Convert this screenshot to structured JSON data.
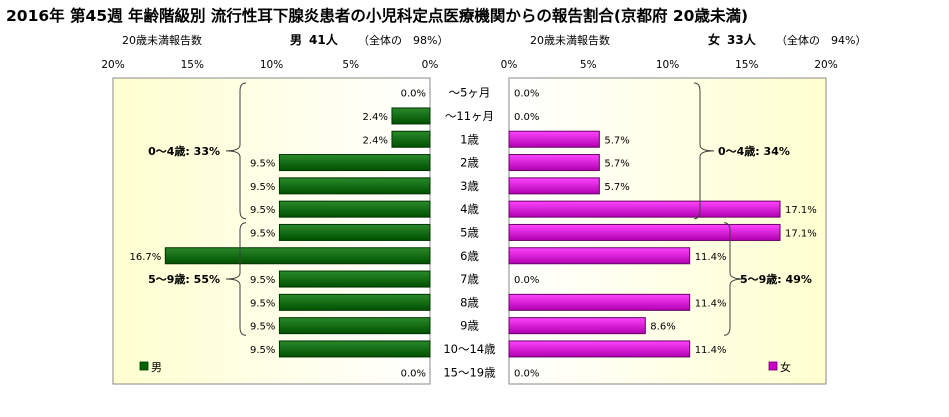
{
  "title": "2016年 第45週 年齢階級別 流行性耳下腺炎患者の小児科定点医療機関からの報告割合(京都府 20歳未満)",
  "male_header": {
    "caption": "20歳未満報告数",
    "label": "男",
    "count": "41人",
    "share": "（全体の　98%）"
  },
  "female_header": {
    "caption": "20歳未満報告数",
    "label": "女",
    "count": "33人",
    "share": "（全体の　94%）"
  },
  "chart_data": {
    "type": "bar",
    "orientation": "horizontal-pyramid",
    "categories": [
      "～5ヶ月",
      "～11ヶ月",
      "1歳",
      "2歳",
      "3歳",
      "4歳",
      "5歳",
      "6歳",
      "7歳",
      "8歳",
      "9歳",
      "10～14歳",
      "15～19歳"
    ],
    "series": [
      {
        "name": "男",
        "color": "#006600",
        "values": [
          0.0,
          2.4,
          2.4,
          9.5,
          9.5,
          9.5,
          9.5,
          16.7,
          9.5,
          9.5,
          9.5,
          9.5,
          0.0
        ],
        "labels": [
          "0.0%",
          "2.4%",
          "2.4%",
          "9.5%",
          "9.5%",
          "9.5%",
          "9.5%",
          "16.7%",
          "9.5%",
          "9.5%",
          "9.5%",
          "9.5%",
          "0.0%"
        ]
      },
      {
        "name": "女",
        "color": "#cc00cc",
        "values": [
          0.0,
          0.0,
          5.7,
          5.7,
          5.7,
          17.1,
          17.1,
          11.4,
          0.0,
          11.4,
          8.6,
          11.4,
          0.0
        ],
        "labels": [
          "0.0%",
          "0.0%",
          "5.7%",
          "5.7%",
          "5.7%",
          "17.1%",
          "17.1%",
          "11.4%",
          "0.0%",
          "11.4%",
          "8.6%",
          "11.4%",
          "0.0%"
        ]
      }
    ],
    "xlim": [
      0,
      20
    ],
    "male_ticks": [
      "20%",
      "15%",
      "10%",
      "5%",
      "0%"
    ],
    "female_ticks": [
      "0%",
      "5%",
      "10%",
      "15%",
      "20%"
    ],
    "brackets": {
      "male": [
        {
          "text": "0～4歳: 33%",
          "from": 0,
          "to": 5
        },
        {
          "text": "5～9歳: 55%",
          "from": 6,
          "to": 10
        }
      ],
      "female": [
        {
          "text": "0～4歳: 34%",
          "from": 0,
          "to": 5
        },
        {
          "text": "5～9歳: 49%",
          "from": 6,
          "to": 10
        }
      ]
    },
    "legend": {
      "male": "男",
      "female": "女"
    }
  }
}
